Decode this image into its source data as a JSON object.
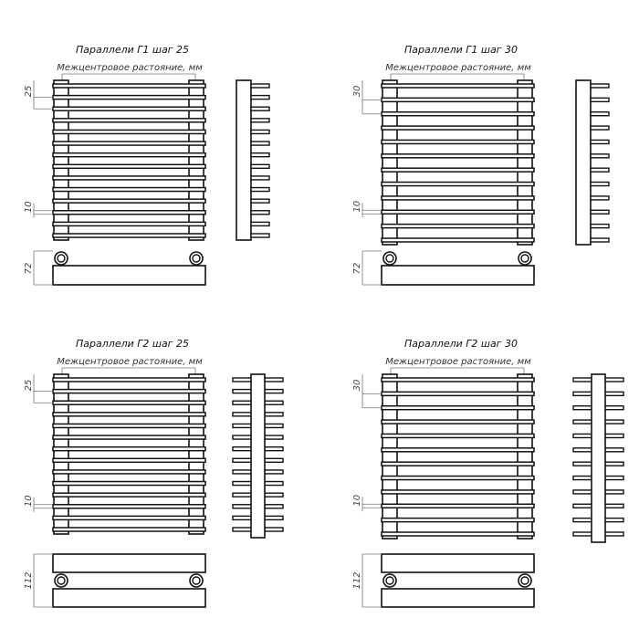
{
  "panels": [
    {
      "id": "g1-25",
      "title": "Параллели Г1 шаг 25",
      "subtitle": "Межцентровое растояние, мм",
      "step_label": "25",
      "bar_label": "10",
      "depth_label": "72",
      "type": "G1",
      "bars": 14
    },
    {
      "id": "g1-30",
      "title": "Параллели Г1 шаг 30",
      "subtitle": "Межцентровое растояние, мм",
      "step_label": "30",
      "bar_label": "10",
      "depth_label": "72",
      "type": "G1",
      "bars": 12
    },
    {
      "id": "g2-25",
      "title": "Параллели Г2 шаг 25",
      "subtitle": "Межцентровое растояние, мм",
      "step_label": "25",
      "bar_label": "10",
      "depth_label": "112",
      "type": "G2",
      "bars": 14
    },
    {
      "id": "g2-30",
      "title": "Параллели Г2 шаг 30",
      "subtitle": "Межцентровое растояние, мм",
      "step_label": "30",
      "bar_label": "10",
      "depth_label": "112",
      "type": "G2",
      "bars": 12
    }
  ],
  "colors": {
    "line": "#111111",
    "dimension": "#777777"
  }
}
